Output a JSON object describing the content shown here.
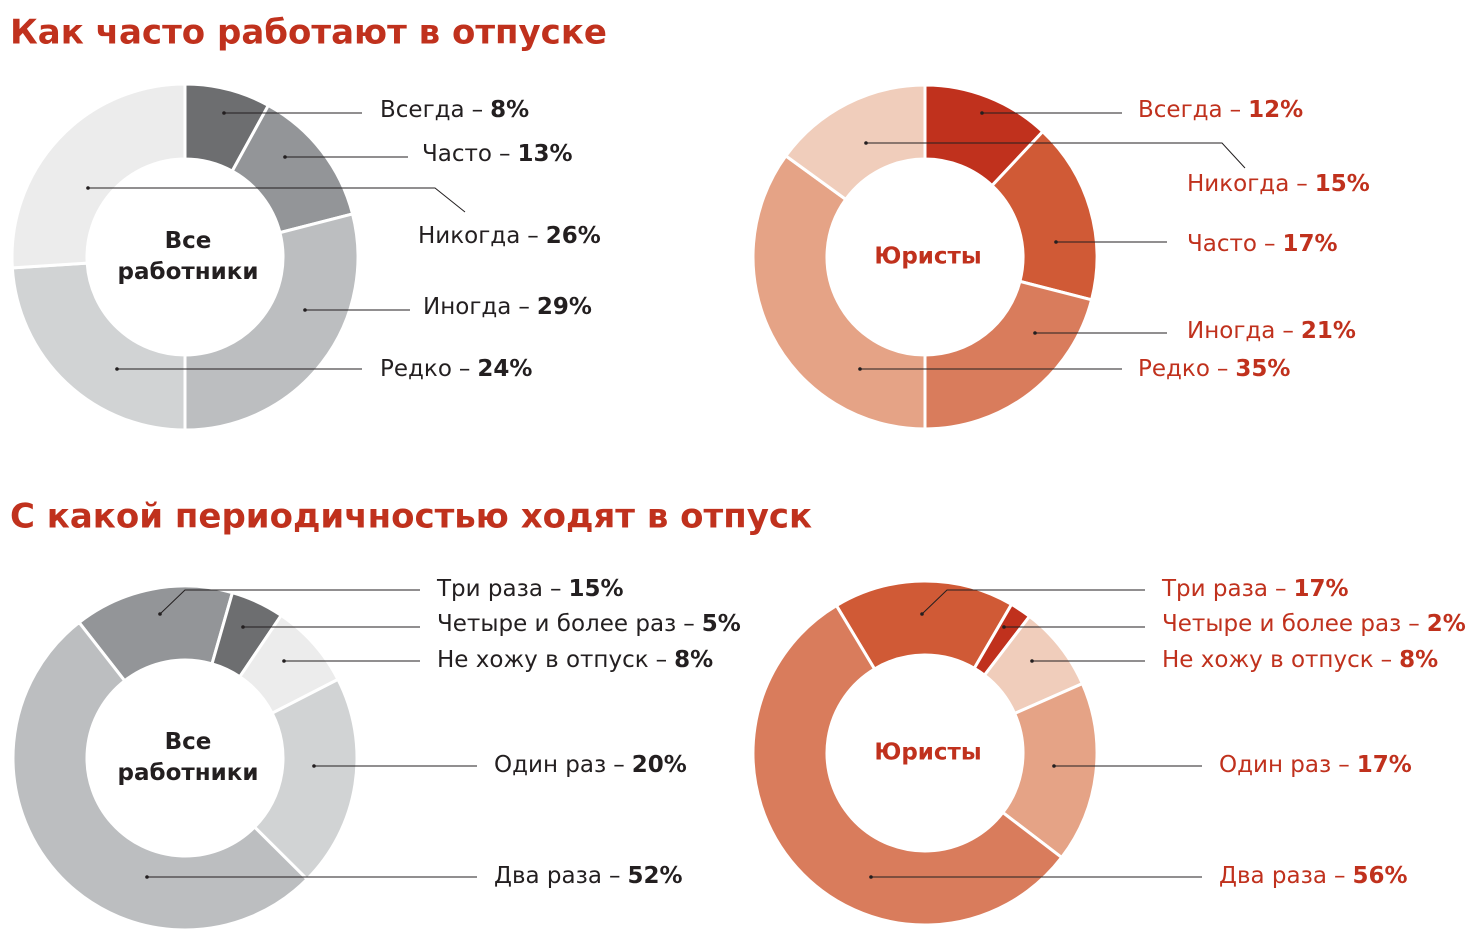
{
  "headings": [
    "Как часто работают в отпуске",
    "С какой периодичностью ходят в отпуск"
  ],
  "label_separator": "–",
  "chart_data": [
    {
      "type": "donut",
      "center_label": [
        "Все",
        "работники"
      ],
      "label_color": "#231f20",
      "categories": [
        "Всегда",
        "Часто",
        "Иногда",
        "Редко",
        "Никогда"
      ],
      "values": [
        8,
        13,
        29,
        24,
        26
      ],
      "value_labels": [
        "8%",
        "13%",
        "29%",
        "24%",
        "26%"
      ],
      "colors": [
        "#6d6e70",
        "#939598",
        "#bcbec0",
        "#d1d3d4",
        "#ececec"
      ]
    },
    {
      "type": "donut",
      "center_label": [
        "Юристы"
      ],
      "label_color": "#c0311d",
      "categories": [
        "Всегда",
        "Часто",
        "Иногда",
        "Редко",
        "Никогда"
      ],
      "values": [
        12,
        17,
        21,
        35,
        15
      ],
      "value_labels": [
        "12%",
        "17%",
        "21%",
        "35%",
        "15%"
      ],
      "colors": [
        "#c0311d",
        "#d05a36",
        "#d97c5c",
        "#e5a386",
        "#f0cdbb"
      ]
    },
    {
      "type": "donut",
      "center_label": [
        "Все",
        "работники"
      ],
      "label_color": "#231f20",
      "categories": [
        "Три раза",
        "Четыре и более раз",
        "Не хожу в отпуск",
        "Один раз",
        "Два раза"
      ],
      "values": [
        15,
        5,
        8,
        20,
        52
      ],
      "value_labels": [
        "15%",
        "5%",
        "8%",
        "20%",
        "52%"
      ],
      "colors": [
        "#939598",
        "#6d6e70",
        "#ececec",
        "#d1d3d4",
        "#bcbec0"
      ]
    },
    {
      "type": "donut",
      "center_label": [
        "Юристы"
      ],
      "label_color": "#c0311d",
      "categories": [
        "Три раза",
        "Четыре и более раз",
        "Не хожу в отпуск",
        "Один раз",
        "Два раза"
      ],
      "values": [
        17,
        2,
        8,
        17,
        56
      ],
      "value_labels": [
        "17%",
        "2%",
        "8%",
        "17%",
        "56%"
      ],
      "colors": [
        "#d05a36",
        "#c0311d",
        "#f0cdbb",
        "#e5a386",
        "#d97c5c"
      ]
    }
  ]
}
